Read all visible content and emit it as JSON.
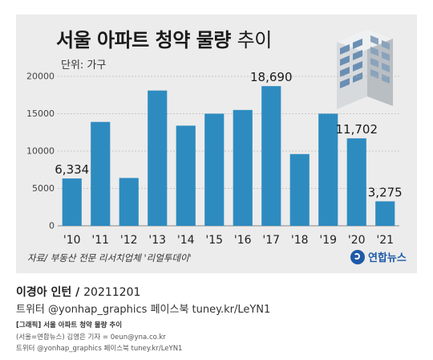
{
  "chart_data": {
    "type": "bar",
    "title": "서울 아파트 청약 물량 추이",
    "title_main": "서울 아파트 청약 물량",
    "title_suffix": "추이",
    "unit_label": "단위: 가구",
    "categories": [
      "'10",
      "'11",
      "'12",
      "'13",
      "'14",
      "'15",
      "'16",
      "'17",
      "'18",
      "'19",
      "'20",
      "'21"
    ],
    "values": [
      6334,
      13900,
      6400,
      18100,
      13400,
      15000,
      15500,
      18690,
      9600,
      15000,
      11702,
      3275
    ],
    "value_labels": [
      {
        "index": 0,
        "text": "6,334"
      },
      {
        "index": 7,
        "text": "18,690"
      },
      {
        "index": 10,
        "text": "11,702"
      },
      {
        "index": 11,
        "text": "3,275"
      }
    ],
    "ylim": [
      0,
      20000
    ],
    "yticks": [
      0,
      5000,
      10000,
      15000,
      20000
    ],
    "ytick_labels": [
      "0",
      "5000",
      "10000",
      "15000",
      "20000"
    ],
    "grid": true,
    "bar_color": "#2e8bc0"
  },
  "source": "자료/ 부동산 전문 리서치업체 '리얼투데이'",
  "logo": {
    "text": "연합뉴스",
    "icon": "yonhap-logo-icon"
  },
  "credits": {
    "author": "이경아 인턴 /",
    "date": "20211201",
    "social": "트위터 @yonhap_graphics  페이스북 tuney.kr/LeYN1"
  },
  "footer": {
    "line1": "[그래픽] 서울 아파트 청약 물량 추이",
    "line2": "(서울=연합뉴스) 김영은 기자 = 0eun@yna.co.kr",
    "line3": "트위터 @yonhap_graphics 페이스북 tuney.kr/LeYN1"
  }
}
